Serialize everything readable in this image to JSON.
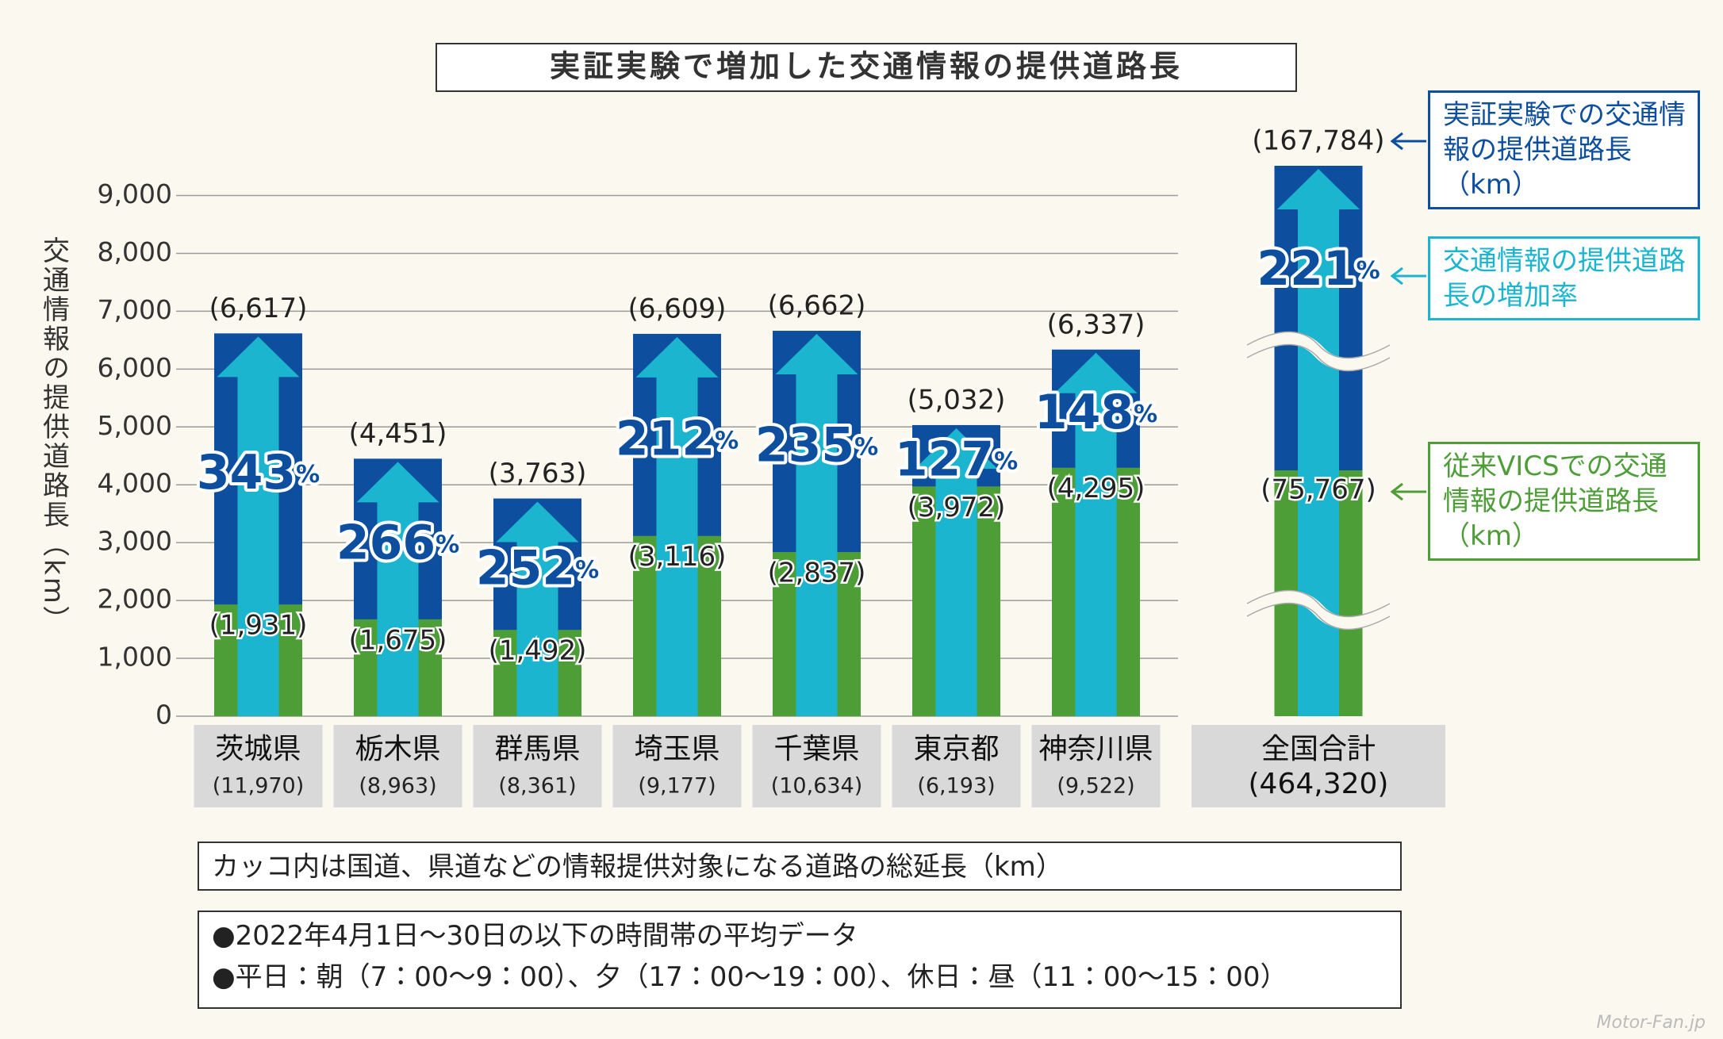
{
  "chart_data": {
    "type": "bar",
    "title": "実証実験で増加した交通情報の提供道路長",
    "y_label": "交通情報の提供道路長（km）",
    "categories": [
      "茨城県",
      "栃木県",
      "群馬県",
      "埼玉県",
      "千葉県",
      "東京都",
      "神奈川県"
    ],
    "category_labels": [
      "(11,970)",
      "(8,963)",
      "(8,361)",
      "(9,177)",
      "(10,634)",
      "(6,193)",
      "(9,522)"
    ],
    "ylim": [
      0,
      9000
    ],
    "yticks": [
      0,
      {
        "value": 1000,
        "label": "1,000"
      },
      {
        "value": 2000,
        "label": "2,000"
      },
      {
        "value": 3000,
        "label": "3,000"
      },
      {
        "value": 4000,
        "label": "4,000"
      },
      {
        "value": 5000,
        "label": "5,000"
      },
      {
        "value": 6000,
        "label": "6,000"
      },
      {
        "value": 7000,
        "label": "7,000"
      },
      {
        "value": 8000,
        "label": "8,000"
      },
      {
        "value": 9000,
        "label": "9,000"
      }
    ],
    "grid": true,
    "series": [
      {
        "name": "実証実験での交通情報の提供道路長（km）",
        "color": "#0d4f9e",
        "values": [
          6617,
          4451,
          3763,
          6609,
          6662,
          5032,
          6337
        ],
        "value_labels": [
          "(6,617)",
          "(4,451)",
          "(3,763)",
          "(6,609)",
          "(6,662)",
          "(5,032)",
          "(6,337)"
        ]
      },
      {
        "name": "従来VICSでの交通情報の提供道路長（km）",
        "color": "#4e9e38",
        "values": [
          1931,
          1675,
          1492,
          3116,
          2837,
          3972,
          4295
        ],
        "value_labels": [
          "(1,931)",
          "(1,675)",
          "(1,492)",
          "(3,116)",
          "(2,837)",
          "(3,972)",
          "(4,295)"
        ]
      }
    ],
    "rate": {
      "name": "交通情報の提供道路長の増加率",
      "color": "#1bb5d0",
      "values": [
        343,
        266,
        252,
        212,
        235,
        127,
        148
      ],
      "unit": "%"
    },
    "national": {
      "category": "全国合計",
      "category_label": "(464,320)",
      "values": [
        167784,
        75767
      ],
      "value_labels": [
        "(167,784)",
        "(75,767)"
      ],
      "rate": 221
    }
  },
  "notes": [
    "カッコ内は国道、県道などの情報提供対象になる道路の総延長（km）",
    "●2022年4月1日〜30日の以下の時間帯の平均データ",
    "●平日：朝（7：00〜9：00）、夕（17：00〜19：00）、休日：昼（11：00〜15：00）"
  ],
  "watermark": "Motor-Fan.jp"
}
